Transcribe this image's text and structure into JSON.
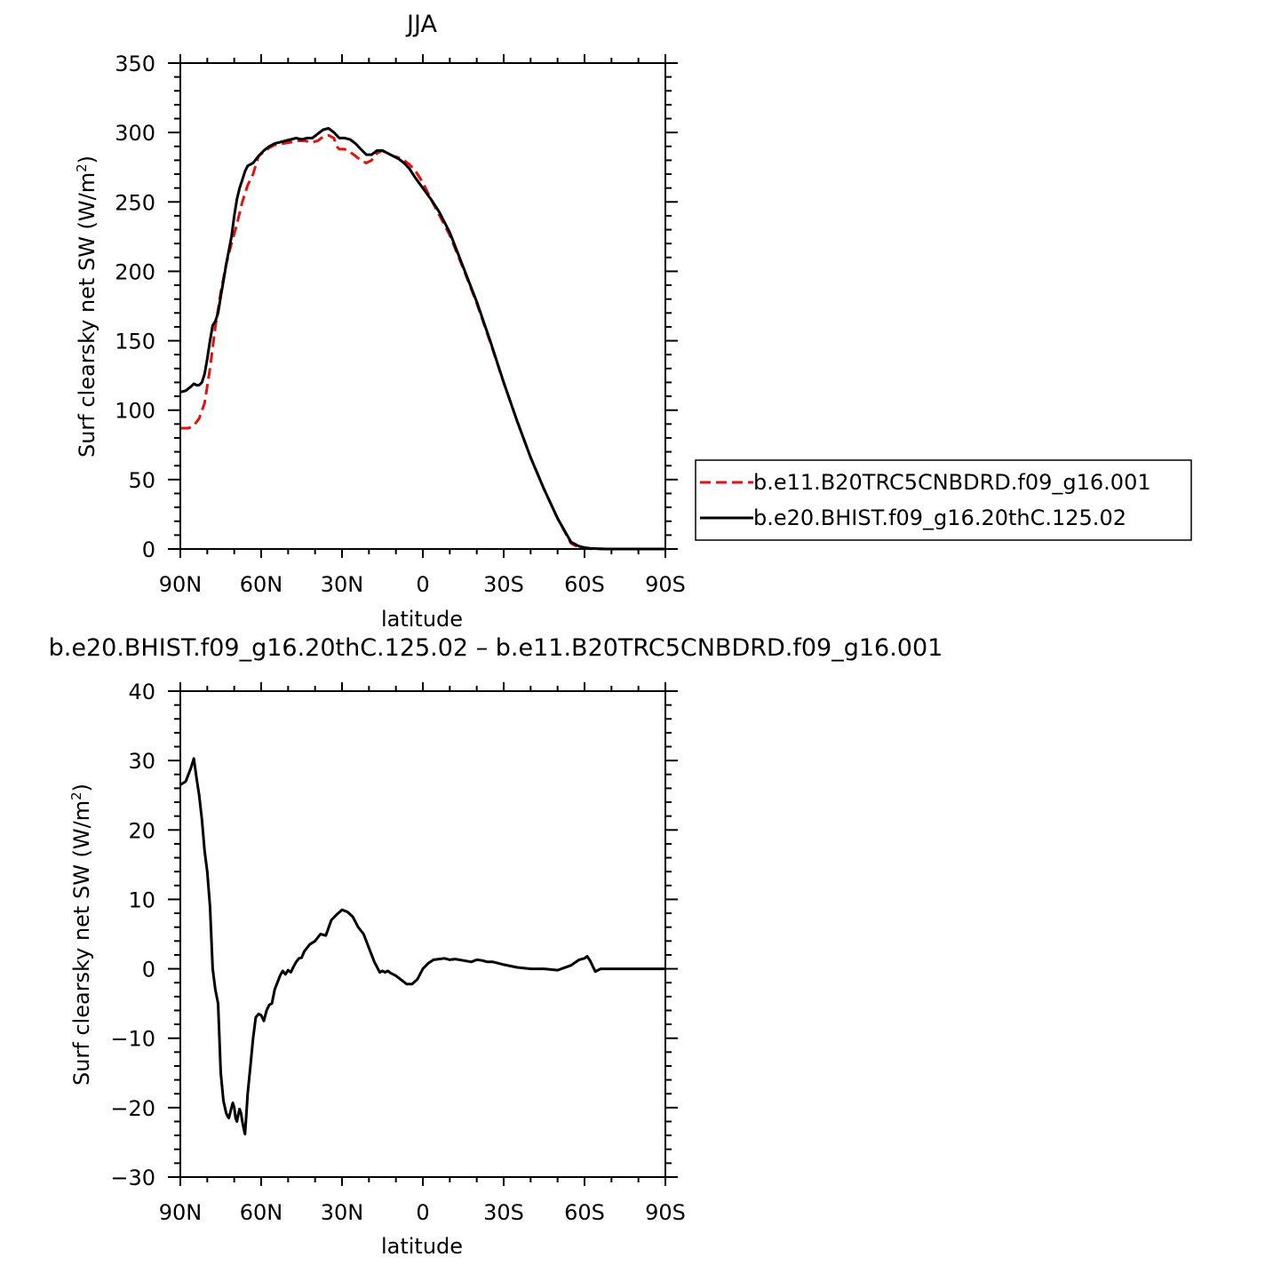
{
  "chart_data": [
    {
      "type": "line",
      "title": "JJA",
      "xlabel": "latitude",
      "ylabel_main": "Surf clearsky net SW (W/m",
      "ylabel_sup": "2",
      "ylabel_end": ")",
      "xlim": [
        90,
        -90
      ],
      "ylim": [
        0,
        350
      ],
      "xticks": [
        90,
        60,
        30,
        0,
        -30,
        -60,
        -90
      ],
      "xtick_labels": [
        "90N",
        "60N",
        "30N",
        "0",
        "30S",
        "60S",
        "90S"
      ],
      "yticks": [
        0,
        50,
        100,
        150,
        200,
        250,
        300,
        350
      ],
      "ytick_labels": [
        "0",
        "50",
        "100",
        "150",
        "200",
        "250",
        "300",
        "350"
      ],
      "legend_position": "right",
      "series": [
        {
          "name": "b.e11.B20TRC5CNBDRD.f09_g16.001",
          "color": "#e3120b",
          "dash": "dashed",
          "x": [
            90,
            87,
            85,
            83,
            81,
            79,
            77,
            75,
            73,
            71,
            69,
            67,
            65,
            63,
            61,
            59,
            57,
            55,
            52,
            49,
            46,
            44,
            41,
            39,
            37,
            35,
            33,
            32,
            31,
            30,
            29,
            27,
            25,
            23,
            21,
            19,
            17,
            15,
            13,
            11,
            9,
            7,
            5,
            3,
            0,
            -3,
            -6,
            -10,
            -15,
            -20,
            -25,
            -30,
            -35,
            -40,
            -45,
            -50,
            -55,
            -58,
            -60,
            -62,
            -64,
            -65,
            -66,
            -68,
            -70,
            -75,
            -80,
            -85,
            -90
          ],
          "values": [
            87,
            87,
            89,
            94,
            105,
            130,
            160,
            185,
            205,
            220,
            234,
            250,
            262,
            270,
            283,
            286,
            289,
            291,
            292,
            293,
            294,
            294,
            293,
            294,
            297,
            298,
            296,
            290,
            288,
            288,
            288,
            286,
            283,
            280,
            278,
            280,
            285,
            287,
            285,
            283,
            282,
            280,
            277,
            273,
            264,
            252,
            241,
            226,
            202,
            177,
            149,
            120,
            92,
            66,
            43,
            22,
            4,
            1,
            0.5,
            0.2,
            0.1,
            0.1,
            0,
            0,
            0,
            0,
            0,
            0,
            0
          ]
        },
        {
          "name": "b.e20.BHIST.f09_g16.20thC.125.02",
          "color": "#000000",
          "dash": "solid",
          "x": [
            90,
            88,
            86,
            85,
            84,
            83,
            82,
            81,
            80,
            79,
            78,
            77,
            76,
            75,
            74,
            73,
            72,
            71,
            70,
            69,
            68,
            67,
            66,
            65,
            63,
            61,
            59,
            57,
            55,
            53,
            51,
            49,
            47,
            45,
            43,
            41,
            39,
            37,
            35,
            33,
            31,
            29,
            27,
            25,
            23,
            21,
            19,
            17,
            15,
            13,
            11,
            9,
            7,
            5,
            3,
            0,
            -3,
            -6,
            -10,
            -15,
            -20,
            -25,
            -30,
            -35,
            -40,
            -45,
            -50,
            -55,
            -58,
            -60,
            -62,
            -64,
            -65,
            -66,
            -68,
            -70,
            -75,
            -80,
            -85,
            -90
          ],
          "values": [
            113,
            114,
            117,
            119,
            118,
            118,
            120,
            126,
            137,
            150,
            161,
            164,
            170,
            182,
            193,
            205,
            215,
            225,
            240,
            252,
            260,
            266,
            272,
            276,
            278,
            283,
            287,
            290,
            292,
            293,
            294,
            295,
            296,
            295,
            296,
            296,
            299,
            302,
            303,
            300,
            296,
            296,
            295,
            292,
            288,
            284,
            284,
            287,
            287,
            285,
            283,
            281,
            278,
            274,
            268,
            260,
            252,
            243,
            228,
            203,
            178,
            150,
            120,
            92,
            66,
            43,
            22,
            5,
            2,
            1,
            0.5,
            0.3,
            0.2,
            0.1,
            0,
            0,
            0,
            0,
            0,
            0
          ]
        }
      ]
    },
    {
      "type": "line",
      "title": "b.e20.BHIST.f09_g16.20thC.125.02 – b.e11.B20TRC5CNBDRD.f09_g16.001",
      "xlabel": "latitude",
      "ylabel_main": "Surf clearsky net SW (W/m",
      "ylabel_sup": "2",
      "ylabel_end": ")",
      "xlim": [
        90,
        -90
      ],
      "ylim": [
        -30,
        40
      ],
      "xticks": [
        90,
        60,
        30,
        0,
        -30,
        -60,
        -90
      ],
      "xtick_labels": [
        "90N",
        "60N",
        "30N",
        "0",
        "30S",
        "60S",
        "90S"
      ],
      "yticks": [
        -30,
        -20,
        -10,
        0,
        10,
        20,
        30,
        40
      ],
      "ytick_labels": [
        "−30",
        "−20",
        "−10",
        "0",
        "10",
        "20",
        "30",
        "40"
      ],
      "series": [
        {
          "color": "#000000",
          "dash": "solid",
          "x": [
            90,
            88,
            87,
            86,
            85,
            84,
            83,
            82,
            81,
            80,
            79,
            78,
            77,
            76,
            75,
            74,
            73,
            72.5,
            72,
            71,
            70.5,
            70,
            69.5,
            69,
            68.5,
            68,
            67.5,
            67,
            66.5,
            66,
            65.5,
            65,
            64,
            63,
            62,
            61,
            60,
            59,
            58,
            57,
            56,
            55,
            54,
            53,
            52,
            51,
            50,
            49,
            48,
            47,
            46,
            45,
            44,
            42,
            40,
            38,
            36,
            34,
            32,
            30,
            28,
            26,
            24,
            22,
            20,
            18,
            16,
            15,
            14,
            13,
            12,
            11,
            10,
            8,
            6,
            4,
            2,
            0,
            -2,
            -4,
            -6,
            -8,
            -10,
            -12,
            -15,
            -18,
            -20,
            -22,
            -24,
            -26,
            -28,
            -30,
            -35,
            -40,
            -45,
            -50,
            -55,
            -58,
            -60,
            -61,
            -62,
            -63,
            -64,
            -65,
            -66,
            -68,
            -70,
            -75,
            -80,
            -85,
            -90
          ],
          "values": [
            26.5,
            27,
            28,
            29,
            30.3,
            27.5,
            25,
            21.5,
            17,
            14,
            9,
            0,
            -3,
            -5,
            -15,
            -19,
            -20.8,
            -21.2,
            -21.5,
            -20,
            -19.3,
            -20,
            -21.5,
            -22,
            -21,
            -20.2,
            -20.8,
            -22,
            -23,
            -23.8,
            -21,
            -18,
            -14,
            -10,
            -7,
            -6.5,
            -6.7,
            -7.5,
            -6,
            -5.2,
            -5,
            -3,
            -2,
            -1,
            -0.3,
            -0.8,
            -0.2,
            -0.5,
            0.3,
            1,
            1.5,
            1.6,
            2.5,
            3.5,
            4,
            5,
            4.8,
            7,
            7.8,
            8.5,
            8.2,
            7.5,
            6,
            5,
            3,
            1,
            -0.5,
            -0.3,
            -0.5,
            -0.3,
            -0.6,
            -0.8,
            -1,
            -1.6,
            -2.2,
            -2.2,
            -1.5,
            0,
            0.8,
            1.3,
            1.4,
            1.5,
            1.3,
            1.4,
            1.2,
            1,
            1.3,
            1.2,
            1,
            1,
            0.8,
            0.6,
            0.2,
            0,
            0,
            -0.2,
            0.5,
            1.3,
            1.5,
            1.8,
            1.2,
            0.4,
            -0.4,
            -0.2,
            0,
            0,
            0,
            0,
            0,
            0,
            0
          ]
        }
      ]
    }
  ]
}
